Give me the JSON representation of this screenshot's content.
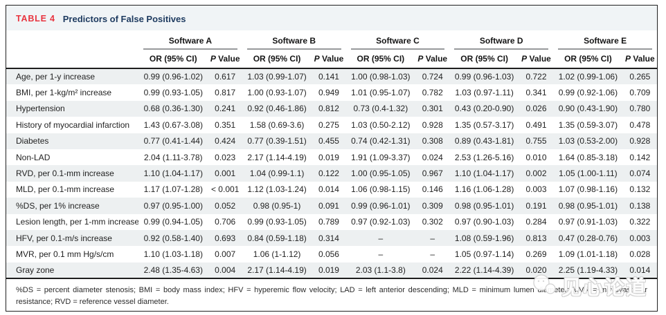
{
  "title": {
    "tag": "TABLE 4",
    "text": "Predictors of False Positives"
  },
  "table": {
    "groups": [
      "Software A",
      "Software B",
      "Software C",
      "Software D",
      "Software E"
    ],
    "col_or": "OR (95% CI)",
    "col_p": "P Value",
    "rows": [
      {
        "label": "Age, per 1-y increase",
        "cells": [
          "0.99 (0.96-1.02)",
          "0.617",
          "1.03 (0.99-1.07)",
          "0.141",
          "1.00 (0.98-1.03)",
          "0.724",
          "0.99 (0.96-1.03)",
          "0.722",
          "1.02 (0.99-1.06)",
          "0.265"
        ]
      },
      {
        "label": "BMI, per 1-kg/m² increase",
        "cells": [
          "0.99 (0.93-1.05)",
          "0.817",
          "1.00 (0.93-1.07)",
          "0.949",
          "1.01 (0.95-1.07)",
          "0.782",
          "1.03 (0.97-1.11)",
          "0.341",
          "0.99 (0.92-1.06)",
          "0.709"
        ]
      },
      {
        "label": "Hypertension",
        "cells": [
          "0.68 (0.36-1.30)",
          "0.241",
          "0.92 (0.46-1.86)",
          "0.812",
          "0.73 (0.4-1.32)",
          "0.301",
          "0.43 (0.20-0.90)",
          "0.026",
          "0.90 (0.43-1.90)",
          "0.780"
        ]
      },
      {
        "label": "History of myocardial infarction",
        "cells": [
          "1.43 (0.67-3.08)",
          "0.351",
          "1.58 (0.69-3.6)",
          "0.275",
          "1.03 (0.50-2.12)",
          "0.928",
          "1.35 (0.57-3.17)",
          "0.491",
          "1.35 (0.59-3.07)",
          "0.478"
        ]
      },
      {
        "label": "Diabetes",
        "cells": [
          "0.77 (0.41-1.44)",
          "0.424",
          "0.77 (0.39-1.51)",
          "0.455",
          "0.74 (0.42-1.31)",
          "0.308",
          "0.89 (0.43-1.81)",
          "0.755",
          "1.03 (0.53-2.00)",
          "0.928"
        ]
      },
      {
        "label": "Non-LAD",
        "cells": [
          "2.04 (1.11-3.78)",
          "0.023",
          "2.17 (1.14-4.19)",
          "0.019",
          "1.91 (1.09-3.37)",
          "0.024",
          "2.53 (1.26-5.16)",
          "0.010",
          "1.64 (0.85-3.18)",
          "0.142"
        ]
      },
      {
        "label": "RVD, per 0.1-mm increase",
        "cells": [
          "1.10 (1.04-1.17)",
          "0.001",
          "1.04 (0.99-1.1)",
          "0.122",
          "1.00 (0.95-1.05)",
          "0.967",
          "1.10 (1.04-1.17)",
          "0.002",
          "1.05 (1.00-1.11)",
          "0.074"
        ]
      },
      {
        "label": "MLD, per 0.1-mm increase",
        "cells": [
          "1.17 (1.07-1.28)",
          "< 0.001",
          "1.12 (1.03-1.24)",
          "0.014",
          "1.06 (0.98-1.15)",
          "0.146",
          "1.16 (1.06-1.28)",
          "0.003",
          "1.07 (0.98-1.16)",
          "0.132"
        ]
      },
      {
        "label": "%DS, per 1% increase",
        "cells": [
          "0.97 (0.95-1.00)",
          "0.052",
          "0.98 (0.95-1)",
          "0.091",
          "0.99 (0.96-1.01)",
          "0.309",
          "0.98 (0.95-1.01)",
          "0.191",
          "0.98 (0.95-1.01)",
          "0.138"
        ]
      },
      {
        "label": "Lesion length, per 1-mm increase",
        "cells": [
          "0.99 (0.94-1.05)",
          "0.706",
          "0.99 (0.93-1.05)",
          "0.789",
          "0.97 (0.92-1.03)",
          "0.302",
          "0.97 (0.90-1.03)",
          "0.284",
          "0.97 (0.91-1.03)",
          "0.322"
        ]
      },
      {
        "label": "HFV, per 0.1-m/s increase",
        "cells": [
          "0.92 (0.58-1.40)",
          "0.693",
          "0.84 (0.59-1.18)",
          "0.314",
          "–",
          "–",
          "1.08 (0.59-1.96)",
          "0.813",
          "0.47 (0.28-0.76)",
          "0.003"
        ]
      },
      {
        "label": "MVR, per 0.1 mm Hg/s/cm",
        "cells": [
          "1.10 (1.03-1.18)",
          "0.007",
          "1.06 (1-1.12)",
          "0.056",
          "–",
          "–",
          "1.05 (0.97-1.14)",
          "0.269",
          "1.09 (1.01-1.18)",
          "0.028"
        ]
      },
      {
        "label": "Gray zone",
        "cells": [
          "2.48 (1.35-4.63)",
          "0.004",
          "2.17 (1.14-4.19)",
          "0.019",
          "2.03 (1.1-3.8)",
          "0.024",
          "2.22 (1.14-4.39)",
          "0.020",
          "2.25 (1.19-4.33)",
          "0.014"
        ]
      }
    ]
  },
  "footnote": "%DS = percent diameter stenosis; BMI = body mass index; HFV = hyperemic flow velocity; LAD = left anterior descending; MLD = minimum lumen diameter; MVR = microvascular resistance; RVD = reference vessel diameter.",
  "watermark": {
    "text": "见心论道"
  },
  "colors": {
    "table_tag_red": "#e8333e",
    "title_navy": "#1d3a5f",
    "stripe_gray": "#edf0f1"
  }
}
